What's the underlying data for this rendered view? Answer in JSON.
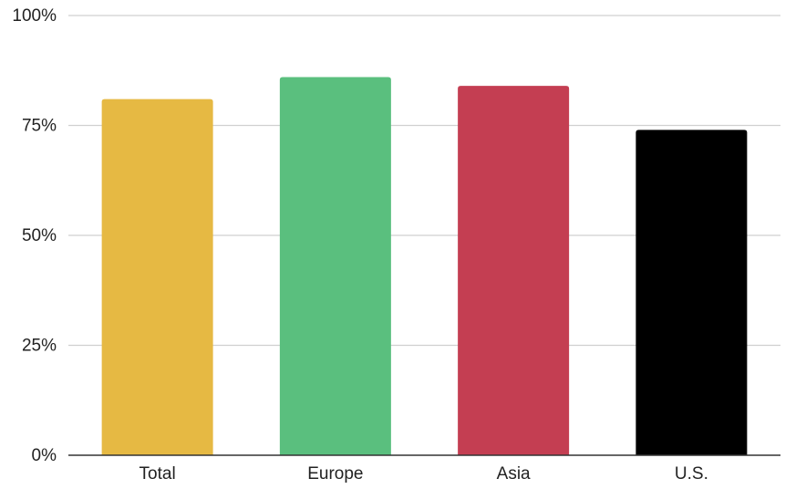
{
  "chart_data": {
    "type": "bar",
    "categories": [
      "Total",
      "Europe",
      "Asia",
      "U.S."
    ],
    "values": [
      81,
      86,
      84,
      74
    ],
    "colors": [
      "#e6b943",
      "#5abf7e",
      "#c43e52",
      "#000000"
    ],
    "value_unit": "%",
    "ylim": [
      0,
      100
    ],
    "yticks": [
      0,
      25,
      50,
      75,
      100
    ],
    "ytick_labels": [
      "0%",
      "25%",
      "50%",
      "75%",
      "100%"
    ],
    "grid": true,
    "legend": "none"
  }
}
